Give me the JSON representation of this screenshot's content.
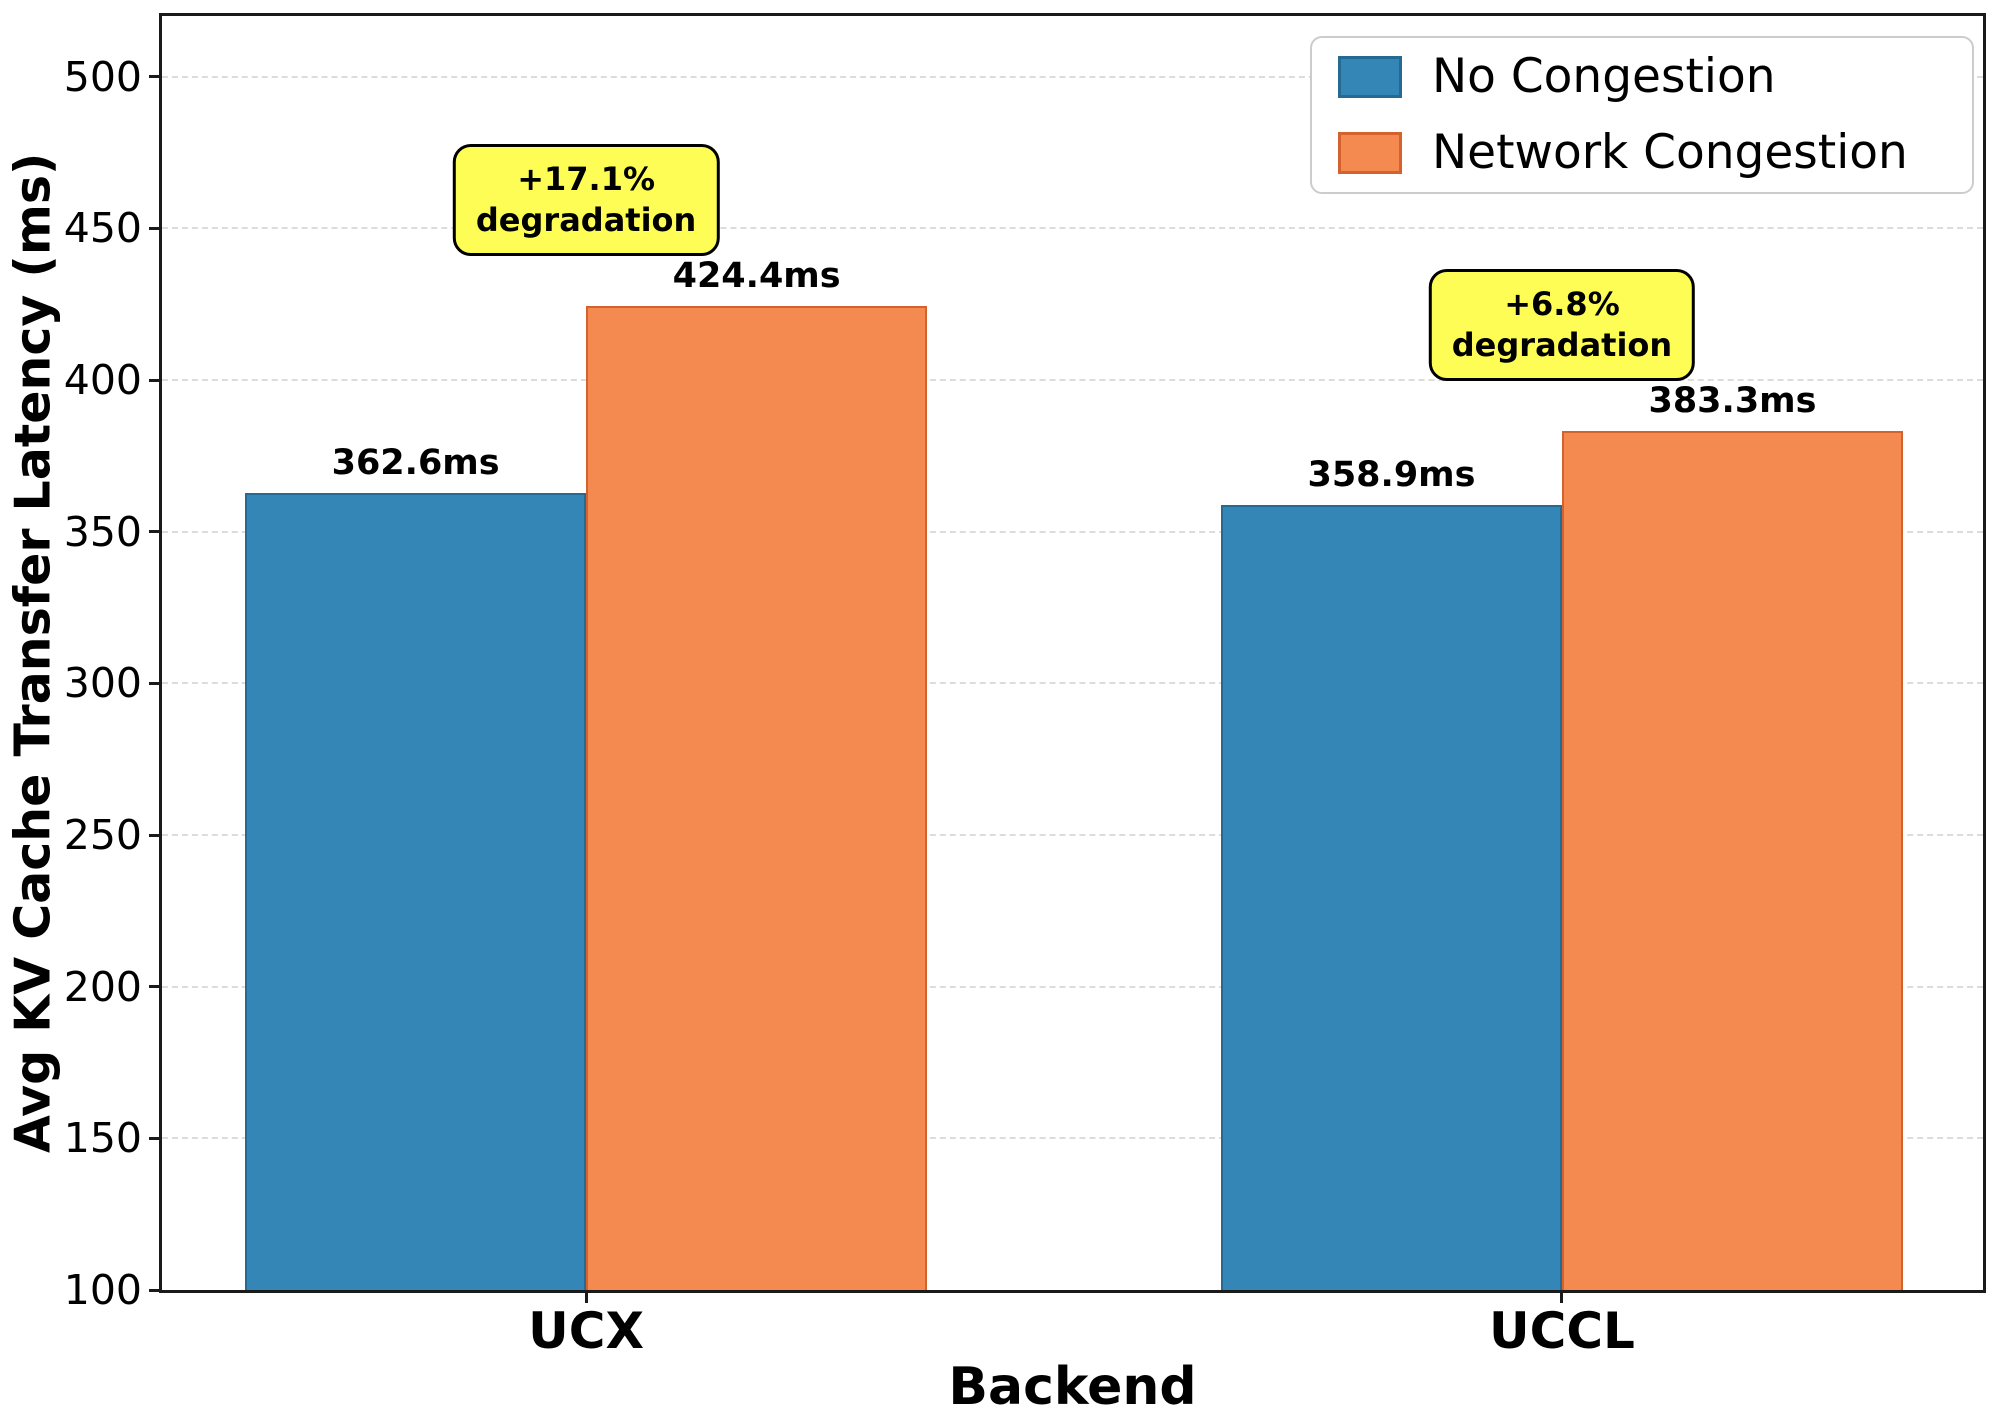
{
  "chart_data": {
    "type": "bar",
    "title": "",
    "xlabel": "Backend",
    "ylabel": "Avg KV Cache Transfer Latency (ms)",
    "categories": [
      "UCX",
      "UCCL"
    ],
    "series": [
      {
        "name": "No Congestion",
        "color": "#3386B5",
        "edge_color": "#266A94",
        "values": [
          362.6,
          358.9
        ],
        "labels": [
          "362.6ms",
          "358.9ms"
        ]
      },
      {
        "name": "Network Congestion",
        "color": "#F58A50",
        "edge_color": "#D4622E",
        "values": [
          424.4,
          383.3
        ],
        "labels": [
          "424.4ms",
          "383.3ms"
        ]
      }
    ],
    "annotations": [
      {
        "category": "UCX",
        "line1": "+17.1%",
        "line2": "degradation"
      },
      {
        "category": "UCCL",
        "line1": "+6.8%",
        "line2": "degradation"
      }
    ],
    "ylim": [
      100,
      520
    ],
    "yticks": [
      100,
      150,
      200,
      250,
      300,
      350,
      400,
      450,
      500
    ],
    "grid": "horizontal-dashed",
    "grid_color": "#DCDCDC",
    "annotation_bg": "#FDFD55",
    "legend_position": "upper-right",
    "group_centers_frac": [
      0.2329,
      0.7688
    ],
    "bar_width_frac": 0.18726
  }
}
